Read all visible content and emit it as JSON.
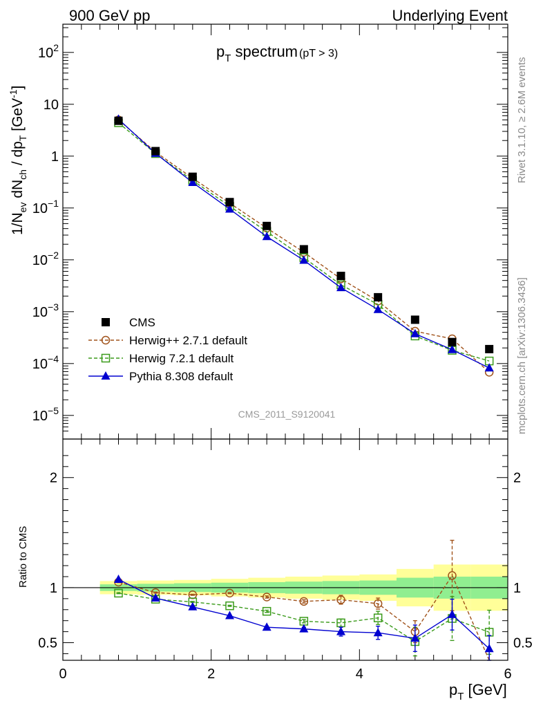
{
  "header": {
    "left_label": "900 GeV pp",
    "right_label": "Underlying Event"
  },
  "title": {
    "main": "p",
    "sub": "T",
    "main2": " spectrum",
    "cut": "(pT >  3)"
  },
  "analysis_label": "CMS_2011_S9120041",
  "side_labels": {
    "rivet": "Rivet 3.1.10, ≥ 2.6M events",
    "mcplots": "mcplots.cern.ch [arXiv:1306.3436]"
  },
  "ylabel_main": {
    "p1": "1/N",
    "s1": "ev",
    "p2": " dN",
    "s2": "ch",
    "p3": " / dp",
    "s3": "T",
    "p4": " [GeV",
    "sup": "-1",
    "p5": "]"
  },
  "ylabel_ratio": "Ratio to CMS",
  "xlabel": {
    "p1": "p",
    "s1": "T",
    "p2": " [GeV]"
  },
  "colors": {
    "cms": "#000000",
    "herwigpp": "#a0521a",
    "herwig7": "#3a9a1a",
    "pythia": "#0000d0",
    "band_inner": "#90ee90",
    "band_outer": "#ffff99"
  },
  "chart_data": [
    {
      "type": "scatter",
      "panel": "main",
      "yscale": "log",
      "xlim": [
        0,
        6
      ],
      "ylim": [
        3.5e-06,
        350
      ],
      "x_ticks": [
        0,
        2,
        4,
        6
      ],
      "y_ticks": [
        {
          "v": 1e-05,
          "label": "10",
          "sup": "−5"
        },
        {
          "v": 0.0001,
          "label": "10",
          "sup": "−4"
        },
        {
          "v": 0.001,
          "label": "10",
          "sup": "−3"
        },
        {
          "v": 0.01,
          "label": "10",
          "sup": "−2"
        },
        {
          "v": 0.1,
          "label": "10",
          "sup": "−1"
        },
        {
          "v": 1,
          "label": "1",
          "sup": ""
        },
        {
          "v": 10,
          "label": "10",
          "sup": ""
        },
        {
          "v": 100,
          "label": "10",
          "sup": "2"
        }
      ],
      "x": [
        0.75,
        1.25,
        1.75,
        2.25,
        2.75,
        3.25,
        3.75,
        4.25,
        4.75,
        5.25,
        5.75
      ],
      "series": [
        {
          "name": "CMS",
          "key": "cms",
          "values": [
            4.8,
            1.25,
            0.4,
            0.13,
            0.045,
            0.016,
            0.0049,
            0.0019,
            0.0007,
            0.00026,
            0.00019
          ]
        },
        {
          "name": "Herwig++ 2.7.1 default",
          "key": "herwigpp",
          "values": [
            5.0,
            1.2,
            0.375,
            0.124,
            0.041,
            0.014,
            0.0043,
            0.0016,
            0.00042,
            0.0003,
            6.8e-05
          ]
        },
        {
          "name": "Herwig 7.2.1 default",
          "key": "herwig7",
          "values": [
            4.4,
            1.12,
            0.34,
            0.108,
            0.035,
            0.011,
            0.0033,
            0.00138,
            0.00034,
            0.00018,
            0.000112
          ]
        },
        {
          "name": "Pythia 8.308 default",
          "key": "pythia",
          "values": [
            5.15,
            1.13,
            0.31,
            0.095,
            0.028,
            0.0098,
            0.0029,
            0.0011,
            0.000375,
            0.000185,
            8.2e-05
          ]
        }
      ]
    },
    {
      "type": "line",
      "panel": "ratio",
      "xlim": [
        0,
        6
      ],
      "ylim": [
        0.34,
        2.35
      ],
      "x_ticks": [
        0,
        2,
        4,
        6
      ],
      "y_ticks": [
        0.5,
        1,
        2
      ],
      "ylabel": "Ratio to CMS",
      "x": [
        0.75,
        1.25,
        1.75,
        2.25,
        2.75,
        3.25,
        3.75,
        4.25,
        4.75,
        5.25,
        5.75
      ],
      "band_bins": [
        0.5,
        1.0,
        1.5,
        2.0,
        2.5,
        3.0,
        3.5,
        4.0,
        4.5,
        5.0,
        5.5,
        6.0
      ],
      "band_inner": [
        [
          0.97,
          1.03
        ],
        [
          0.965,
          1.035
        ],
        [
          0.96,
          1.04
        ],
        [
          0.955,
          1.045
        ],
        [
          0.95,
          1.05
        ],
        [
          0.945,
          1.055
        ],
        [
          0.94,
          1.06
        ],
        [
          0.935,
          1.065
        ],
        [
          0.91,
          1.09
        ],
        [
          0.9,
          1.1
        ],
        [
          0.9,
          1.1
        ]
      ],
      "band_outer": [
        [
          0.94,
          1.06
        ],
        [
          0.935,
          1.065
        ],
        [
          0.93,
          1.07
        ],
        [
          0.92,
          1.08
        ],
        [
          0.91,
          1.09
        ],
        [
          0.9,
          1.1
        ],
        [
          0.89,
          1.11
        ],
        [
          0.88,
          1.12
        ],
        [
          0.83,
          1.17
        ],
        [
          0.79,
          1.21
        ],
        [
          0.79,
          1.21
        ]
      ],
      "series": [
        {
          "name": "Herwig++ 2.7.1 default",
          "key": "herwigpp",
          "values": [
            1.05,
            0.955,
            0.935,
            0.95,
            0.915,
            0.875,
            0.89,
            0.855,
            0.6,
            1.11,
            0.33
          ],
          "errors": [
            0.005,
            0.005,
            0.005,
            0.005,
            0.01,
            0.015,
            0.04,
            0.05,
            0.1,
            0.32,
            0.0
          ]
        },
        {
          "name": "Herwig 7.2.1 default",
          "key": "herwig7",
          "values": [
            0.95,
            0.895,
            0.87,
            0.835,
            0.785,
            0.695,
            0.68,
            0.725,
            0.51,
            0.72,
            0.595
          ],
          "errors": [
            0.005,
            0.005,
            0.005,
            0.005,
            0.01,
            0.015,
            0.035,
            0.06,
            0.13,
            0.2,
            0.2
          ]
        },
        {
          "name": "Pythia 8.308 default",
          "key": "pythia",
          "values": [
            1.075,
            0.905,
            0.825,
            0.745,
            0.64,
            0.625,
            0.6,
            0.59,
            0.54,
            0.755,
            0.445
          ],
          "errors": [
            0.005,
            0.005,
            0.005,
            0.005,
            0.01,
            0.015,
            0.04,
            0.06,
            0.12,
            0.14,
            0.12
          ]
        }
      ]
    }
  ],
  "legend": [
    {
      "label": "CMS",
      "key": "cms",
      "marker": "square-filled",
      "line": "none"
    },
    {
      "label": "Herwig++ 2.7.1 default",
      "key": "herwigpp",
      "marker": "circle-open",
      "line": "dashed"
    },
    {
      "label": "Herwig 7.2.1 default",
      "key": "herwig7",
      "marker": "square-open",
      "line": "dashed"
    },
    {
      "label": "Pythia 8.308 default",
      "key": "pythia",
      "marker": "triangle-filled",
      "line": "solid"
    }
  ]
}
